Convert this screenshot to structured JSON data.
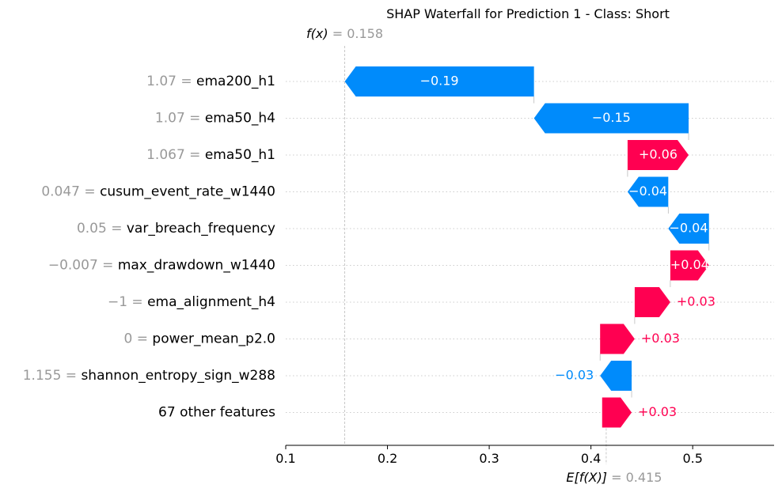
{
  "chart_data": {
    "type": "waterfall",
    "title": "SHAP Waterfall for Prediction 1 - Class: Short",
    "fx": {
      "label": "f(x)",
      "value_text": "0.158",
      "value": 0.158
    },
    "base": {
      "label": "E[f(X)]",
      "value_text": "0.415",
      "value": 0.415
    },
    "xlim": [
      0.1,
      0.58
    ],
    "xticks": [
      0.1,
      0.2,
      0.3,
      0.4,
      0.5
    ],
    "xtick_labels": [
      "0.1",
      "0.2",
      "0.3",
      "0.4",
      "0.5"
    ],
    "grid": "horizontal dotted",
    "colors": {
      "positive": "#ff0051",
      "negative": "#008bfb",
      "muted": "#999999"
    },
    "features": [
      {
        "value": "1.07",
        "name": "ema200_h1",
        "shap": -0.186,
        "label": "−0.19"
      },
      {
        "value": "1.07",
        "name": "ema50_h4",
        "shap": -0.152,
        "label": "−0.15"
      },
      {
        "value": "1.067",
        "name": "ema50_h1",
        "shap": 0.06,
        "label": "+0.06"
      },
      {
        "value": "0.047",
        "name": "cusum_event_rate_w1440",
        "shap": -0.04,
        "label": "−0.04"
      },
      {
        "value": "0.05",
        "name": "var_breach_frequency",
        "shap": -0.04,
        "label": "−0.04"
      },
      {
        "value": "−0.007",
        "name": "max_drawdown_w1440",
        "shap": 0.038,
        "label": "+0.04"
      },
      {
        "value": "−1",
        "name": "ema_alignment_h4",
        "shap": 0.035,
        "label": "+0.03"
      },
      {
        "value": "0",
        "name": "power_mean_p2.0",
        "shap": 0.034,
        "label": "+0.03"
      },
      {
        "value": "1.155",
        "name": "shannon_entropy_sign_w288",
        "shap": -0.031,
        "label": "−0.03"
      },
      {
        "value": "",
        "name": "67 other features",
        "shap": 0.029,
        "label": "+0.03"
      }
    ]
  }
}
